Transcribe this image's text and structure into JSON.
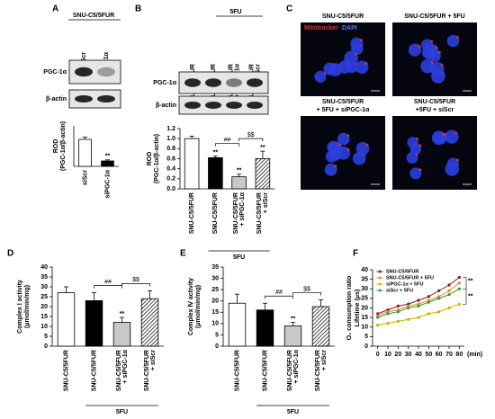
{
  "chart_data": [
    {
      "type": "bar",
      "panel": "A",
      "y_label": [
        "ROD",
        "(PGC-1α/β-actin)"
      ],
      "categories": [
        [
          "siScr"
        ],
        [
          "siPGC-1α"
        ]
      ],
      "values": [
        1.0,
        0.2
      ],
      "errors": [
        0.08,
        0.04
      ],
      "colors": [
        "#ffffff",
        "#000000"
      ],
      "hatched": [
        false,
        false
      ],
      "ylim": [
        0,
        1.5
      ],
      "annotations": [
        "**"
      ]
    },
    {
      "type": "bar",
      "panel": "B",
      "y_label": [
        "ROD",
        "(PGC-1α/β-actin)"
      ],
      "categories": [
        [
          "SNU-C5/5FUR"
        ],
        [
          "SNU-C5/5FUR"
        ],
        [
          "SNU-C5/5FUR",
          "+ siPGC-1α"
        ],
        [
          "SNU-C5/5FUR",
          "+ siScr"
        ]
      ],
      "values": [
        1.0,
        0.62,
        0.24,
        0.6
      ],
      "errors": [
        0.05,
        0.03,
        0.05,
        0.15
      ],
      "colors": [
        "#ffffff",
        "#000000",
        "#c8c8c8",
        "#ffffff"
      ],
      "hatched": [
        false,
        false,
        false,
        true
      ],
      "ylim": [
        0,
        1.2
      ],
      "yticks": [
        {
          "value": 0,
          "label": "0.0"
        },
        0.2,
        0.4,
        0.6,
        0.8,
        {
          "value": 1,
          "label": "1.0"
        },
        1.2
      ],
      "group_label": "5FU",
      "annotations": [
        "**",
        "**",
        "**",
        "##",
        "$$"
      ]
    },
    {
      "type": "bar",
      "panel": "D",
      "y_label": [
        "Complex Ⅰ activity",
        "(μmol/min/mg)"
      ],
      "categories": [
        [
          "SNU-C5/5FUR"
        ],
        [
          "SNU-C5/5FUR"
        ],
        [
          "SNU-C5/5FUR",
          "+ siPGC-1α"
        ],
        [
          "SNU-C5/5FUR",
          "+ siScr"
        ]
      ],
      "values": [
        27,
        23,
        12,
        24
      ],
      "errors": [
        3,
        4,
        2.5,
        4
      ],
      "colors": [
        "#ffffff",
        "#000000",
        "#c8c8c8",
        "#ffffff"
      ],
      "hatched": [
        false,
        false,
        false,
        true
      ],
      "ylim": [
        0,
        40
      ],
      "yticks": [
        0,
        5,
        10,
        15,
        20,
        25,
        30,
        35,
        40
      ],
      "group_label": "5FU",
      "annotations": [
        "**",
        "##",
        "$$"
      ]
    },
    {
      "type": "bar",
      "panel": "E",
      "y_label": [
        "Complex Ⅳ activity",
        "(μmol/min/mg)"
      ],
      "categories": [
        [
          "SNU-C5/5FUR"
        ],
        [
          "SNU-C5/5FUR"
        ],
        [
          "SNU-C5/5FUR",
          "+ siPGC-1α"
        ],
        [
          "SNU-C5/5FUR",
          "+ siScr"
        ]
      ],
      "values": [
        19,
        16,
        9,
        17.5
      ],
      "errors": [
        4,
        3,
        1.5,
        3
      ],
      "colors": [
        "#ffffff",
        "#000000",
        "#c8c8c8",
        "#ffffff"
      ],
      "hatched": [
        false,
        false,
        false,
        true
      ],
      "ylim": [
        0,
        35
      ],
      "yticks": [
        0,
        5,
        10,
        15,
        20,
        25,
        30,
        35
      ],
      "group_label": "5FU",
      "annotations": [
        "**",
        "##",
        "$$"
      ]
    },
    {
      "type": "line",
      "panel": "F",
      "y_label": [
        "O₂ consumption ratio",
        "Lifetime (μs)"
      ],
      "x_unit": "(min)",
      "x": [
        0,
        10,
        20,
        30,
        40,
        50,
        60,
        70,
        80
      ],
      "xlim": [
        -5,
        85
      ],
      "xticks": [
        0,
        10,
        20,
        30,
        40,
        50,
        60,
        70,
        80
      ],
      "ylim": [
        0,
        40
      ],
      "yticks": [
        0,
        5,
        10,
        15,
        20,
        25,
        30,
        35,
        40
      ],
      "series": [
        {
          "name": "SNU-C5/5FUR",
          "color": "#8b1a1a",
          "values": [
            17,
            19,
            21,
            22,
            24,
            26,
            29,
            32,
            36
          ]
        },
        {
          "name": "SNU-C5/5FUR + 5FU",
          "color": "#e08a2c",
          "values": [
            16,
            18,
            19,
            21,
            22,
            24,
            26,
            29,
            33
          ]
        },
        {
          "name": "siPGC-1α + 5FU",
          "color": "#c8b400",
          "values": [
            11,
            12,
            13,
            14,
            15,
            17,
            18,
            20,
            22
          ]
        },
        {
          "name": "siScr + 5FU",
          "color": "#3a9a3a",
          "values": [
            15,
            17,
            18,
            20,
            21,
            23,
            25,
            27,
            30
          ]
        }
      ],
      "legend": "upper left",
      "annotations": [
        "**",
        "**"
      ]
    }
  ],
  "blots": {
    "A": {
      "header": "SNU-C5/5FUR",
      "lanes": [
        "siScr",
        "siPGC-1α"
      ],
      "rows": [
        "PGC-1α",
        "β-actin"
      ]
    },
    "B": {
      "header": "5FU",
      "lanes": [
        [
          "SNU-C5/5FUR"
        ],
        [
          "SNU-C5/5FUR"
        ],
        [
          "SNU-C5/5FUR",
          "+ siPGC-1α"
        ],
        [
          "SNU-C5/5FUR",
          "+ siScr"
        ]
      ],
      "rows": [
        "PGC-1α",
        "β-actin"
      ]
    }
  },
  "images": {
    "panel": "C",
    "legend": [
      "Mitotracker",
      "DAPI"
    ],
    "labels": [
      [
        "SNU-C5/5FUR"
      ],
      [
        "SNU-C5/5FUR  + 5FU"
      ],
      [
        "SNU-C5/5FUR",
        "+ 5FU  + siPGC-1α"
      ],
      [
        "SNU-C5/5FUR",
        "+5FU  + siScr"
      ]
    ]
  }
}
